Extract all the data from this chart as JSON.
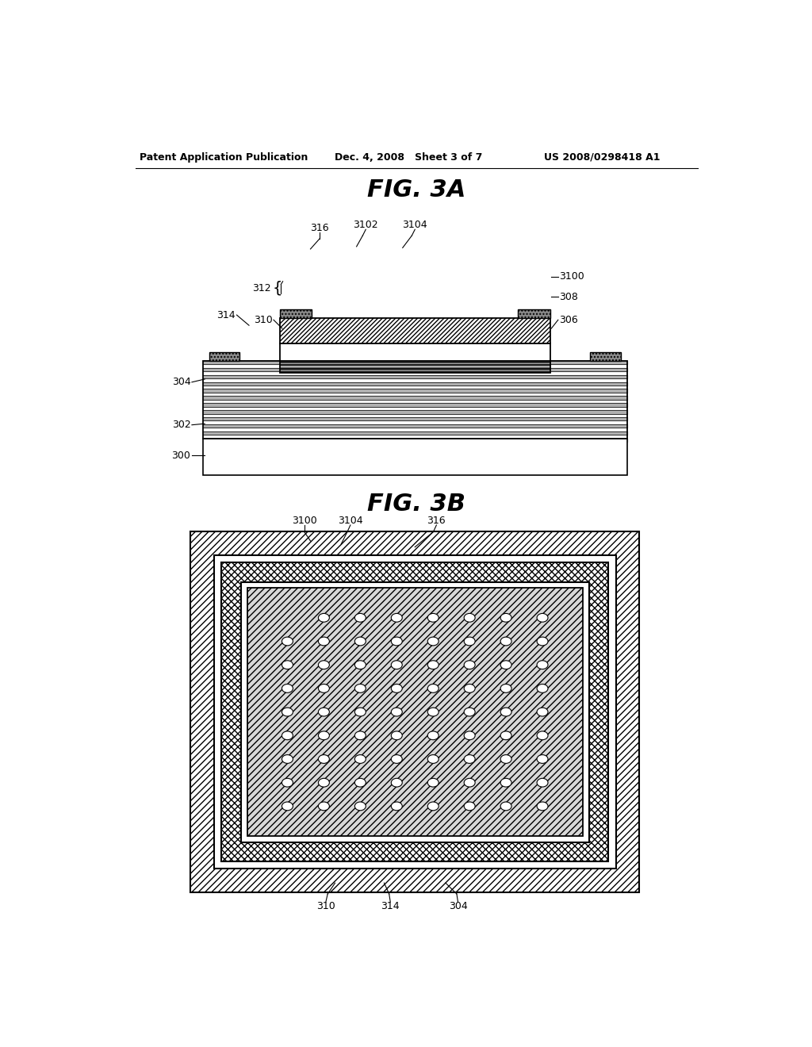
{
  "header_left": "Patent Application Publication",
  "header_mid": "Dec. 4, 2008   Sheet 3 of 7",
  "header_right": "US 2008/0298418 A1",
  "fig3a_title": "FIG. 3A",
  "fig3b_title": "FIG. 3B",
  "bg_color": "#ffffff"
}
